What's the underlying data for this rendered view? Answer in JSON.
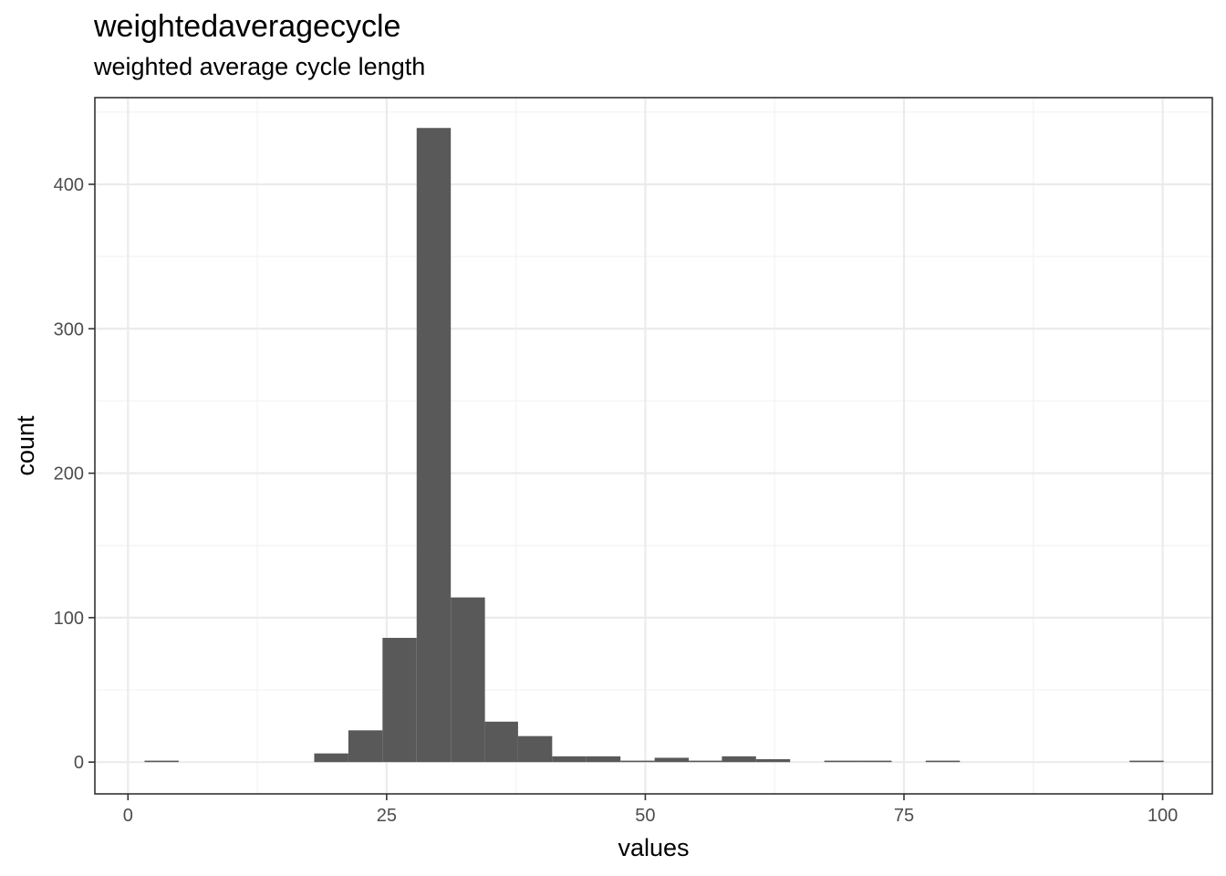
{
  "header": {
    "title": "weightedaveragecycle",
    "subtitle": "weighted average cycle length"
  },
  "colors": {
    "bar_fill": "#595959",
    "grid_major": "#ebebeb",
    "grid_minor": "#f3f3f3",
    "panel_border": "#333333",
    "tick_text": "#4d4d4d"
  },
  "chart_data": {
    "type": "bar",
    "title": "weightedaveragecycle",
    "subtitle": "weighted average cycle length",
    "xlabel": "values",
    "ylabel": "count",
    "xlim": [
      -3.2,
      104.8
    ],
    "ylim": [
      -22,
      460
    ],
    "x_ticks": [
      0,
      25,
      50,
      75,
      100
    ],
    "x_tick_labels": [
      "0",
      "25",
      "50",
      "75",
      "100"
    ],
    "y_ticks": [
      0,
      100,
      200,
      300,
      400
    ],
    "y_tick_labels": [
      "0",
      "100",
      "200",
      "300",
      "400"
    ],
    "grid": true,
    "legend": "none",
    "bin_width": 3.28,
    "bins": [
      {
        "x0": 1.6,
        "x1": 4.9,
        "count": 1
      },
      {
        "x0": 18.0,
        "x1": 21.3,
        "count": 6
      },
      {
        "x0": 21.3,
        "x1": 24.6,
        "count": 22
      },
      {
        "x0": 24.6,
        "x1": 27.9,
        "count": 86
      },
      {
        "x0": 27.9,
        "x1": 31.2,
        "count": 439
      },
      {
        "x0": 31.2,
        "x1": 34.5,
        "count": 114
      },
      {
        "x0": 34.5,
        "x1": 37.7,
        "count": 28
      },
      {
        "x0": 37.7,
        "x1": 41.0,
        "count": 18
      },
      {
        "x0": 41.0,
        "x1": 44.3,
        "count": 4
      },
      {
        "x0": 44.3,
        "x1": 47.6,
        "count": 4
      },
      {
        "x0": 47.6,
        "x1": 50.9,
        "count": 1
      },
      {
        "x0": 50.9,
        "x1": 54.2,
        "count": 3
      },
      {
        "x0": 54.2,
        "x1": 57.4,
        "count": 1
      },
      {
        "x0": 57.4,
        "x1": 60.7,
        "count": 4
      },
      {
        "x0": 60.7,
        "x1": 64.0,
        "count": 2
      },
      {
        "x0": 67.3,
        "x1": 70.6,
        "count": 1
      },
      {
        "x0": 70.6,
        "x1": 73.8,
        "count": 1
      },
      {
        "x0": 77.1,
        "x1": 80.4,
        "count": 1
      },
      {
        "x0": 96.8,
        "x1": 100.1,
        "count": 1
      }
    ]
  }
}
